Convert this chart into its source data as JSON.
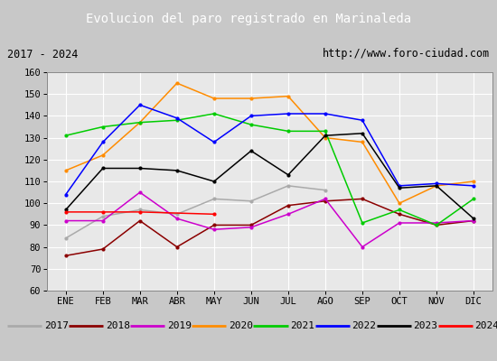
{
  "title": "Evolucion del paro registrado en Marinaleda",
  "subtitle_left": "2017 - 2024",
  "subtitle_right": "http://www.foro-ciudad.com",
  "months": [
    "ENE",
    "FEB",
    "MAR",
    "ABR",
    "MAY",
    "JUN",
    "JUL",
    "AGO",
    "SEP",
    "OCT",
    "NOV",
    "DIC"
  ],
  "ylim": [
    60,
    160
  ],
  "yticks": [
    60,
    70,
    80,
    90,
    100,
    110,
    120,
    130,
    140,
    150,
    160
  ],
  "series_order": [
    "2017",
    "2018",
    "2019",
    "2020",
    "2021",
    "2022",
    "2023",
    "2024"
  ],
  "series": {
    "2017": {
      "color": "#aaaaaa",
      "data": [
        84,
        94,
        97,
        95,
        102,
        101,
        108,
        106,
        null,
        null,
        null,
        null
      ]
    },
    "2018": {
      "color": "#8b0000",
      "data": [
        76,
        79,
        92,
        80,
        90,
        90,
        99,
        101,
        102,
        95,
        90,
        92
      ]
    },
    "2019": {
      "color": "#cc00cc",
      "data": [
        92,
        92,
        105,
        93,
        88,
        89,
        95,
        102,
        80,
        91,
        91,
        92
      ]
    },
    "2020": {
      "color": "#ff8c00",
      "data": [
        115,
        122,
        137,
        155,
        148,
        148,
        149,
        130,
        128,
        100,
        108,
        110
      ]
    },
    "2021": {
      "color": "#00cc00",
      "data": [
        131,
        135,
        137,
        138,
        141,
        136,
        133,
        133,
        91,
        97,
        90,
        102
      ]
    },
    "2022": {
      "color": "#0000ff",
      "data": [
        104,
        128,
        145,
        139,
        128,
        140,
        141,
        141,
        138,
        108,
        109,
        108
      ]
    },
    "2023": {
      "color": "#000000",
      "data": [
        97,
        116,
        116,
        115,
        110,
        124,
        113,
        131,
        132,
        107,
        108,
        93
      ]
    },
    "2024": {
      "color": "#ff0000",
      "data": [
        96,
        96,
        96,
        null,
        95,
        null,
        null,
        null,
        null,
        null,
        null,
        null
      ]
    }
  },
  "title_bg": "#4472c4",
  "title_fg": "#ffffff",
  "subtitle_bg": "#e0e0e0",
  "plot_bg": "#e8e8e8",
  "fig_bg": "#c8c8c8",
  "legend_bg": "#f0f0f0",
  "grid_color": "#ffffff"
}
